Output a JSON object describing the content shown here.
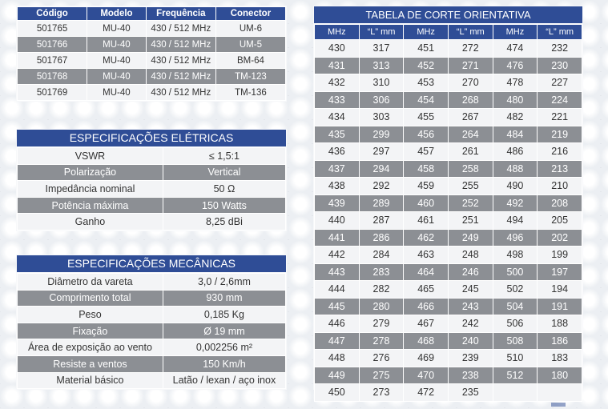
{
  "products": {
    "headers": [
      "Código",
      "Modelo",
      "Frequência",
      "Conector"
    ],
    "rows": [
      [
        "501765",
        "MU-40",
        "430 / 512 MHz",
        "UM-6"
      ],
      [
        "501766",
        "MU-40",
        "430 / 512 MHz",
        "UM-5"
      ],
      [
        "501767",
        "MU-40",
        "430 / 512 MHz",
        "BM-64"
      ],
      [
        "501768",
        "MU-40",
        "430 / 512 MHz",
        "TM-123"
      ],
      [
        "501769",
        "MU-40",
        "430 / 512 MHz",
        "TM-136"
      ]
    ]
  },
  "electrical": {
    "title": "ESPECIFICAÇÕES ELÉTRICAS",
    "rows": [
      [
        "VSWR",
        "≤ 1,5:1"
      ],
      [
        "Polarização",
        "Vertical"
      ],
      [
        "Impedância nominal",
        "50 Ω"
      ],
      [
        "Potência máxima",
        "150 Watts"
      ],
      [
        "Ganho",
        "8,25 dBi"
      ]
    ]
  },
  "mechanical": {
    "title": "ESPECIFICAÇÕES MECÂNICAS",
    "rows": [
      [
        "Diâmetro da vareta",
        "3,0 / 2,6mm"
      ],
      [
        "Comprimento total",
        "930 mm"
      ],
      [
        "Peso",
        "0,185 Kg"
      ],
      [
        "Fixação",
        "Ø 19 mm"
      ],
      [
        "Área de exposição ao vento",
        "0,002256 m²"
      ],
      [
        "Resiste a ventos",
        "150 Km/h"
      ],
      [
        "Material básico",
        "Latão / lexan / aço inox"
      ]
    ]
  },
  "cut_table": {
    "title": "TABELA DE CORTE ORIENTATIVA",
    "headers": [
      "MHz",
      "“L” mm",
      "MHz",
      "“L” mm",
      "MHz",
      "“L” mm"
    ],
    "rows": [
      [
        "430",
        "317",
        "451",
        "272",
        "474",
        "232"
      ],
      [
        "431",
        "313",
        "452",
        "271",
        "476",
        "230"
      ],
      [
        "432",
        "310",
        "453",
        "270",
        "478",
        "227"
      ],
      [
        "433",
        "306",
        "454",
        "268",
        "480",
        "224"
      ],
      [
        "434",
        "303",
        "455",
        "267",
        "482",
        "221"
      ],
      [
        "435",
        "299",
        "456",
        "264",
        "484",
        "219"
      ],
      [
        "436",
        "297",
        "457",
        "261",
        "486",
        "216"
      ],
      [
        "437",
        "294",
        "458",
        "258",
        "488",
        "213"
      ],
      [
        "438",
        "292",
        "459",
        "255",
        "490",
        "210"
      ],
      [
        "439",
        "289",
        "460",
        "252",
        "492",
        "208"
      ],
      [
        "440",
        "287",
        "461",
        "251",
        "494",
        "205"
      ],
      [
        "441",
        "286",
        "462",
        "249",
        "496",
        "202"
      ],
      [
        "442",
        "284",
        "463",
        "248",
        "498",
        "199"
      ],
      [
        "443",
        "283",
        "464",
        "246",
        "500",
        "197"
      ],
      [
        "444",
        "282",
        "465",
        "245",
        "502",
        "194"
      ],
      [
        "445",
        "280",
        "466",
        "243",
        "504",
        "191"
      ],
      [
        "446",
        "279",
        "467",
        "242",
        "506",
        "188"
      ],
      [
        "447",
        "278",
        "468",
        "240",
        "508",
        "186"
      ],
      [
        "448",
        "276",
        "469",
        "239",
        "510",
        "183"
      ],
      [
        "449",
        "275",
        "470",
        "238",
        "512",
        "180"
      ],
      [
        "450",
        "273",
        "472",
        "235",
        "",
        ""
      ]
    ]
  },
  "colors": {
    "header_blue": "#2f4d96",
    "row_dark": "#8c8f94",
    "row_light": "#f3f4f6"
  }
}
